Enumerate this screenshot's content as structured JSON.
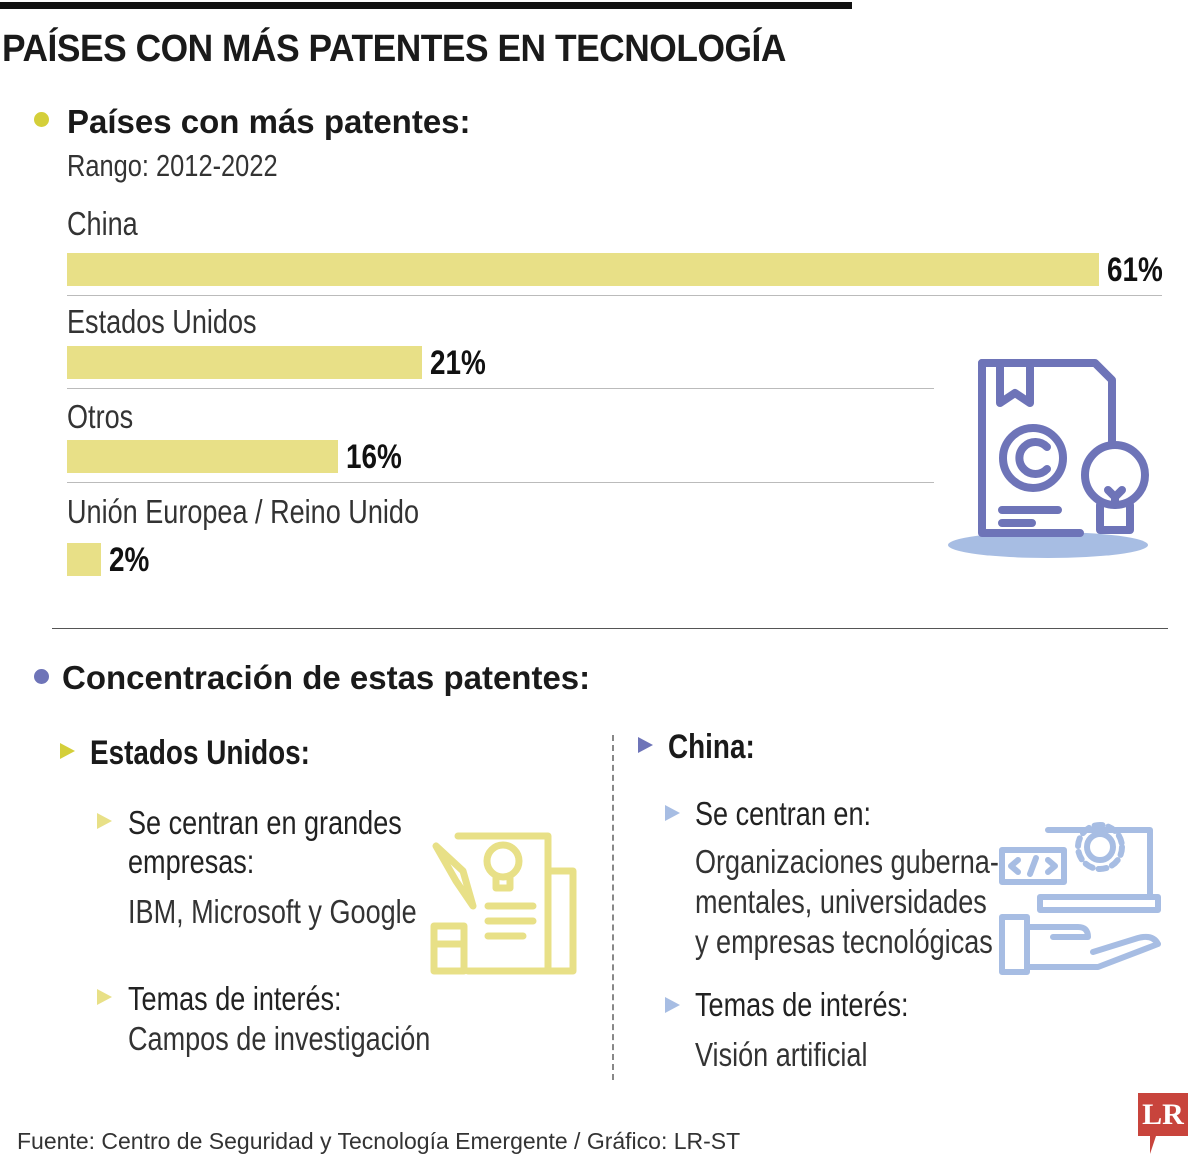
{
  "title": "PAÍSES CON MÁS PATENTES EN TECNOLOGÍA",
  "section1": {
    "heading": "Países con más patentes:",
    "subheading": "Rango: 2012-2022"
  },
  "chart_data": {
    "type": "bar",
    "orientation": "horizontal",
    "categories": [
      "China",
      "Estados Unidos",
      "Otros",
      "Unión Europea / Reino Unido"
    ],
    "values": [
      61,
      21,
      16,
      2
    ],
    "value_labels": [
      "61%",
      "21%",
      "16%",
      "2%"
    ],
    "unit": "%",
    "title": "Países con más patentes:",
    "subtitle": "Rango: 2012-2022",
    "bar_color": "#e8e087",
    "grid": false
  },
  "section2": {
    "heading": "Concentración de estas patentes:",
    "us": {
      "label": "Estados Unidos:",
      "focus_label_line1": "Se centran en grandes",
      "focus_label_line2": "empresas:",
      "focus_value": "IBM, Microsoft y Google",
      "topics_label": "Temas de interés:",
      "topics_value": "Campos de investigación"
    },
    "china": {
      "label": "China:",
      "focus_label": "Se centran en:",
      "focus_line1": "Organizaciones guberna-",
      "focus_line2": "mentales, universidades",
      "focus_line3": "y empresas tecnológicas",
      "topics_label": "Temas de interés:",
      "topics_value": "Visión artificial"
    }
  },
  "footer": {
    "source": "Fuente: Centro de Seguridad y Tecnología Emergente / Gráfico: LR-ST",
    "logo": "LR"
  },
  "colors": {
    "yellow": "#e8e087",
    "yellow_dot": "#d4cf3a",
    "blue": "#6e74b8",
    "light_blue": "#a7bde3",
    "logo_red": "#c8443c"
  },
  "icons": [
    "patent-document-lightbulb-icon",
    "patent-pen-document-icon",
    "code-laptop-hand-icon"
  ]
}
